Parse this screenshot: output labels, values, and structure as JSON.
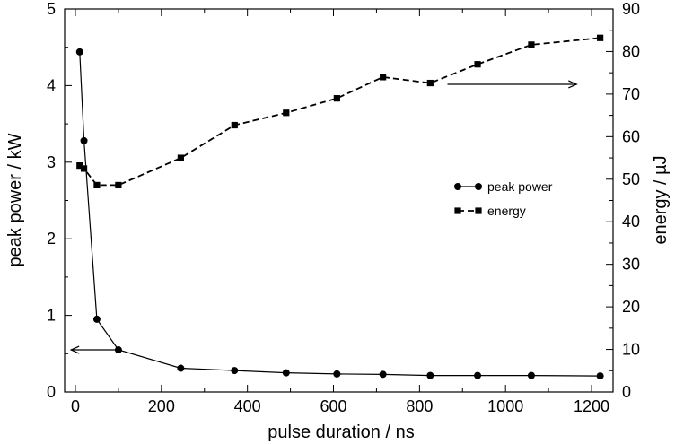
{
  "chart_data": {
    "type": "line",
    "xlabel": "pulse duration / ns",
    "ylabel_left": "peak power / kW",
    "ylabel_right": "energy / µJ",
    "xlim": [
      -25,
      1250
    ],
    "ylim_left": [
      0,
      5
    ],
    "ylim_right": [
      0,
      90
    ],
    "x_ticks": [
      0,
      200,
      400,
      600,
      800,
      1000,
      1200
    ],
    "y_left_ticks": [
      0,
      1,
      2,
      3,
      4,
      5
    ],
    "y_right_ticks": [
      0,
      10,
      20,
      30,
      40,
      50,
      60,
      70,
      80,
      90
    ],
    "grid": false,
    "legend_position": "right-middle",
    "series": [
      {
        "name": "peak power",
        "axis": "left",
        "marker": "circle",
        "line": "solid",
        "color": "#000000",
        "x": [
          10,
          20,
          50,
          100,
          245,
          370,
          490,
          608,
          715,
          825,
          935,
          1060,
          1220
        ],
        "y": [
          4.44,
          3.28,
          0.95,
          0.55,
          0.31,
          0.28,
          0.25,
          0.235,
          0.23,
          0.215,
          0.215,
          0.215,
          0.21
        ]
      },
      {
        "name": "energy",
        "axis": "right",
        "marker": "square",
        "line": "dashed",
        "color": "#000000",
        "x": [
          10,
          20,
          50,
          100,
          245,
          370,
          490,
          608,
          715,
          825,
          935,
          1060,
          1220
        ],
        "y": [
          53.2,
          52.5,
          48.6,
          48.6,
          55.0,
          62.7,
          65.6,
          69.0,
          74.0,
          72.6,
          77.0,
          81.6,
          83.2
        ]
      }
    ],
    "annotations": [
      {
        "type": "arrow",
        "direction": "left",
        "axis": "left",
        "x_from": 100,
        "x_to": -10,
        "y": 0.55
      },
      {
        "type": "arrow",
        "direction": "right",
        "axis": "right",
        "x_from": 865,
        "x_to": 1165,
        "y": 72.3
      }
    ]
  }
}
